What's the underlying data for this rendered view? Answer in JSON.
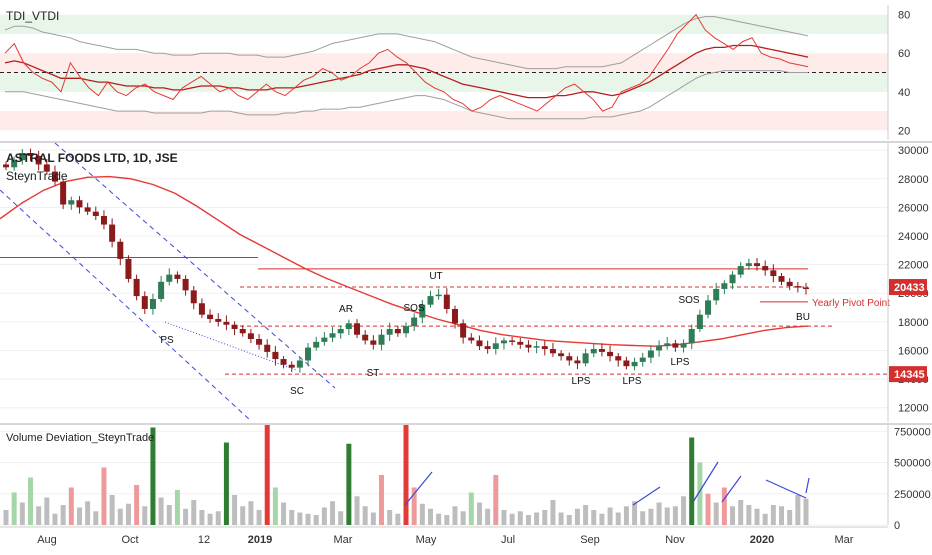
{
  "colors": {
    "up": "#26a69a",
    "down": "#ef5350",
    "candle_body_up": "#2e7d57",
    "candle_body_dn": "#8b1a1a",
    "ma": "#e53935",
    "channel": "#3b48d8",
    "dashed_red": "#d32f2f",
    "green_band": "#e8f5e9",
    "red_band": "#fdecea",
    "price_label_bg": "#d32f2f",
    "axis_text": "#333333",
    "grid": "#f0f0f0"
  },
  "chart_data": [
    {
      "type": "line",
      "panel": "indicator",
      "title": "TDI_VTDI",
      "ylim": [
        15,
        85
      ],
      "yticks": [
        20,
        40,
        60,
        80
      ],
      "bands": [
        {
          "from": 70,
          "to": 80,
          "color": "green"
        },
        {
          "from": 50,
          "to": 60,
          "color": "red"
        },
        {
          "from": 40,
          "to": 50,
          "color": "green"
        },
        {
          "from": 20,
          "to": 30,
          "color": "red"
        }
      ],
      "midline": 50,
      "series": [
        {
          "values": [
            60,
            65,
            55,
            50,
            47,
            45,
            40,
            55,
            48,
            42,
            38,
            45,
            40,
            38,
            42,
            44,
            40,
            38,
            36,
            42,
            45,
            48,
            44,
            40,
            42,
            38,
            36,
            40,
            44,
            40,
            38,
            42,
            46,
            48,
            52,
            50,
            46,
            48,
            52,
            55,
            60,
            62,
            58,
            55,
            50,
            45,
            42,
            40,
            36,
            34,
            30,
            32,
            36,
            38,
            36,
            34,
            32,
            30,
            34,
            38,
            42,
            44,
            40,
            36,
            30,
            32,
            40,
            42,
            44,
            48,
            55,
            62,
            70,
            75,
            80,
            72,
            68,
            65,
            62,
            66,
            68,
            60,
            58,
            57,
            55,
            54,
            53
          ]
        },
        {
          "values": [
            55,
            56,
            55,
            53,
            51,
            49,
            47,
            47,
            47,
            46,
            45,
            45,
            44,
            43,
            43,
            43,
            42,
            42,
            41,
            41,
            42,
            43,
            43,
            43,
            42,
            42,
            41,
            41,
            41,
            42,
            42,
            42,
            43,
            44,
            45,
            46,
            47,
            48,
            49,
            51,
            52,
            53,
            54,
            54,
            53,
            52,
            50,
            48,
            46,
            44,
            43,
            42,
            41,
            40,
            39,
            38,
            37,
            37,
            37,
            38,
            38,
            39,
            40,
            40,
            39,
            38,
            39,
            41,
            43,
            45,
            48,
            51,
            54,
            57,
            60,
            62,
            63,
            63,
            64,
            64,
            64,
            63,
            62,
            61,
            60,
            59,
            58
          ]
        },
        {
          "values": [
            72,
            74,
            74,
            73,
            71,
            70,
            69,
            68,
            66,
            65,
            64,
            63,
            62,
            62,
            62,
            61,
            60,
            60,
            59,
            59,
            59,
            60,
            60,
            60,
            60,
            59,
            59,
            59,
            58,
            58,
            58,
            59,
            60,
            61,
            63,
            65,
            66,
            67,
            68,
            69,
            70,
            70,
            70,
            69,
            68,
            67,
            66,
            64,
            62,
            60,
            58,
            57,
            56,
            55,
            54,
            53,
            52,
            52,
            52,
            52,
            53,
            53,
            53,
            53,
            53,
            54,
            55,
            58,
            61,
            64,
            67,
            70,
            73,
            76,
            78,
            79,
            79,
            78,
            77,
            76,
            75,
            74,
            73,
            72,
            71,
            70,
            69
          ]
        },
        {
          "values": [
            40,
            40,
            40,
            39,
            38,
            37,
            36,
            35,
            34,
            33,
            32,
            31,
            30,
            30,
            30,
            30,
            29,
            29,
            29,
            29,
            29,
            29,
            30,
            30,
            30,
            29,
            28,
            28,
            28,
            28,
            29,
            29,
            30,
            30,
            31,
            31,
            31,
            32,
            32,
            33,
            34,
            35,
            36,
            37,
            38,
            38,
            37,
            36,
            34,
            32,
            30,
            29,
            28,
            27,
            26,
            26,
            26,
            26,
            26,
            26,
            26,
            26,
            26,
            27,
            27,
            27,
            28,
            29,
            30,
            32,
            35,
            38,
            41,
            44,
            47,
            49,
            50,
            51,
            51,
            51,
            51,
            51,
            51,
            51,
            50,
            50,
            50
          ]
        }
      ]
    },
    {
      "type": "candlestick",
      "panel": "price",
      "title": "ASTRAL FOODS LTD, 1D, JSE",
      "subtitle": "SteynTrade",
      "ylim": [
        11000,
        30500
      ],
      "yticks": [
        12000,
        14000,
        16000,
        18000,
        20000,
        22000,
        24000,
        26000,
        28000,
        30000
      ],
      "x_tick_labels": [
        "Aug",
        "Oct",
        "12",
        "2019",
        "Mar",
        "May",
        "Jul",
        "Sep",
        "Nov",
        "2020",
        "Mar"
      ],
      "closes": [
        28800,
        29300,
        29800,
        29600,
        29000,
        28500,
        27800,
        26200,
        26500,
        26000,
        25700,
        25400,
        24800,
        23600,
        22400,
        21000,
        19800,
        18900,
        19600,
        20800,
        21300,
        21000,
        20200,
        19300,
        18500,
        18200,
        18000,
        17800,
        17500,
        17200,
        16800,
        16400,
        15900,
        15400,
        15000,
        14800,
        15300,
        16200,
        16600,
        16900,
        17200,
        17500,
        17900,
        17100,
        16700,
        16400,
        17100,
        17500,
        17200,
        17700,
        18300,
        19200,
        19800,
        19900,
        18900,
        17900,
        16900,
        16700,
        16300,
        16100,
        16500,
        16700,
        16600,
        16400,
        16200,
        16300,
        16100,
        15800,
        15600,
        15300,
        15100,
        15800,
        16100,
        15900,
        15600,
        15300,
        14900,
        15200,
        15500,
        16000,
        16300,
        16500,
        16200,
        16500,
        17500,
        18500,
        19500,
        20300,
        20700,
        21300,
        21900,
        22100,
        21900,
        21600,
        21200,
        20800,
        20500,
        20400,
        20300
      ],
      "ma_values": [
        25200,
        26300,
        27200,
        27800,
        28100,
        28150,
        28000,
        27600,
        27000,
        26100,
        25100,
        24100,
        23300,
        22500,
        21700,
        21000,
        20400,
        19800,
        19200,
        18700,
        18200,
        17800,
        17400,
        17100,
        16900,
        16700,
        16600,
        16500,
        16400,
        16350,
        16300,
        16400,
        16600,
        16800,
        17100,
        17400,
        17600,
        17700
      ],
      "price_tags": [
        20433,
        14345
      ],
      "horizontal_levels": [
        {
          "value": 22500,
          "style": "solid"
        },
        {
          "value": 21700,
          "style": "solid"
        },
        {
          "value": 20433,
          "style": "dashed"
        },
        {
          "value": 19400,
          "style": "solid",
          "label": "Yearly Pivot Point"
        },
        {
          "value": 17700,
          "style": "dashed"
        },
        {
          "value": 14345,
          "style": "dashed"
        }
      ],
      "annotations": [
        "PS",
        "SC",
        "AR",
        "ST",
        "SOS",
        "UT",
        "LPS",
        "LPS",
        "LPS",
        "SOS",
        "BU"
      ]
    },
    {
      "type": "bar",
      "panel": "volume",
      "title": "Volume Deviation_SteynTrade",
      "ylim": [
        0,
        800000
      ],
      "yticks": [
        0,
        250000,
        500000,
        750000
      ],
      "ytick_labels": [
        "0",
        "250000",
        "500000",
        "750000"
      ],
      "values": [
        120000,
        260000,
        180000,
        380000,
        150000,
        220000,
        90000,
        160000,
        300000,
        140000,
        190000,
        110000,
        460000,
        240000,
        130000,
        170000,
        320000,
        150000,
        780000,
        220000,
        160000,
        280000,
        130000,
        200000,
        120000,
        90000,
        110000,
        660000,
        240000,
        150000,
        190000,
        120000,
        800000,
        300000,
        180000,
        120000,
        100000,
        90000,
        80000,
        140000,
        190000,
        110000,
        650000,
        230000,
        150000,
        100000,
        400000,
        120000,
        90000,
        800000,
        300000,
        170000,
        130000,
        90000,
        80000,
        150000,
        110000,
        260000,
        180000,
        130000,
        400000,
        120000,
        90000,
        110000,
        80000,
        100000,
        120000,
        200000,
        100000,
        80000,
        130000,
        160000,
        120000,
        90000,
        140000,
        100000,
        150000,
        190000,
        110000,
        130000,
        180000,
        140000,
        150000,
        230000,
        700000,
        500000,
        250000,
        180000,
        300000,
        150000,
        200000,
        160000,
        130000,
        90000,
        160000,
        150000,
        120000,
        240000,
        210000
      ]
    }
  ],
  "indicator_panel": {
    "title": "TDI_VTDI"
  },
  "price_panel": {
    "title": "ASTRAL FOODS LTD, 1D, JSE",
    "subtitle": "SteynTrade",
    "price_tag_1": "20433",
    "price_tag_2": "14345",
    "pivot_label": "Yearly Pivot Point",
    "tick_labels": [
      "30000",
      "28000",
      "26000",
      "24000",
      "22000",
      "20000",
      "18000",
      "16000",
      "14000",
      "12000"
    ]
  },
  "indicator_ticks": [
    "80",
    "60",
    "40",
    "20"
  ],
  "volume_panel": {
    "title": "Volume Deviation_SteynTrade",
    "tick_labels": [
      "750000",
      "500000",
      "250000",
      "0"
    ]
  },
  "annotation_labels": {
    "ps": "PS",
    "sc": "SC",
    "ar": "AR",
    "st": "ST",
    "sos1": "SOS",
    "ut": "UT",
    "lps1": "LPS",
    "lps2": "LPS",
    "lps3": "LPS",
    "sos2": "SOS",
    "bu": "BU"
  },
  "time_axis": {
    "labels": [
      "Aug",
      "Oct",
      "12",
      "2019",
      "Mar",
      "May",
      "Jul",
      "Sep",
      "Nov",
      "2020",
      "Mar"
    ]
  }
}
